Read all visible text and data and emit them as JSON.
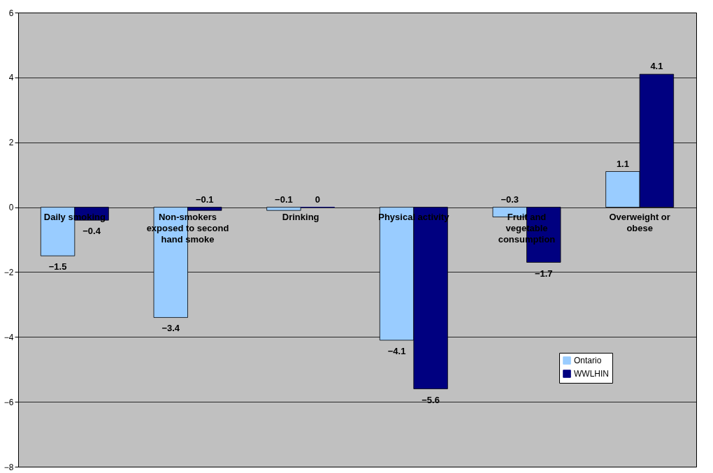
{
  "chart_data": {
    "type": "bar",
    "categories": [
      "Daily smoking",
      "Non-smokers exposed to second hand smoke",
      "Drinking",
      "Physical activity",
      "Fruit and vegetable consumption",
      "Overweight or obese"
    ],
    "series": [
      {
        "name": "Ontario",
        "color": "#99ccff",
        "values": [
          -1.5,
          -3.4,
          -0.1,
          -4.1,
          -0.3,
          1.1
        ]
      },
      {
        "name": "WWLHIN",
        "color": "#000080",
        "values": [
          -0.4,
          -0.1,
          0,
          -5.6,
          -1.7,
          4.1
        ]
      }
    ],
    "ylim": [
      -8,
      6
    ],
    "yticks": [
      -8,
      -6,
      -4,
      -2,
      0,
      2,
      4,
      6
    ],
    "grid": "y",
    "legend": "bottom right",
    "data_labels": true
  }
}
